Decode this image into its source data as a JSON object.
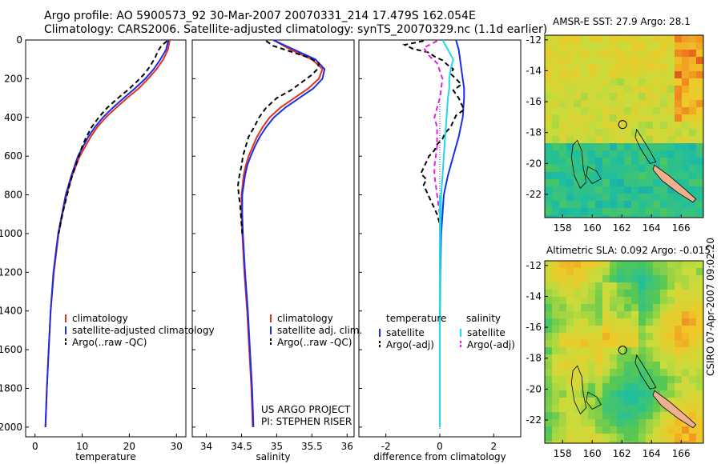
{
  "header": {
    "line1": "Argo profile: AO 5900573_92 30-Mar-2007 20070331_214 17.479S 162.054E",
    "line2": "Climatology: CARS2006. Satellite-adjusted climatology: synTS_20070329.nc (1.1d earlier)"
  },
  "credit": "CSIRO 07-Apr-2007 09:02:20",
  "colors": {
    "clim": "#e03020",
    "sat": "#1a2ee8",
    "argo": "#000000",
    "sat_s": "#22d8e8",
    "argo_s": "#e020d8"
  },
  "chart_data": [
    {
      "type": "line",
      "title": "",
      "xlabel": "temperature",
      "ylabel": "",
      "xlim": [
        -2,
        32
      ],
      "ylim": [
        2050,
        0
      ],
      "xticks": [
        "0",
        "10",
        "20",
        "30"
      ],
      "yticks": [
        "0",
        "200",
        "400",
        "600",
        "800",
        "1000",
        "1200",
        "1400",
        "1600",
        "1800",
        "2000"
      ],
      "legend": [
        "climatology",
        "satellite-adjusted climatology",
        "Argo(..raw -QC)"
      ],
      "series": [
        {
          "name": "climatology",
          "depth": [
            0,
            50,
            100,
            150,
            200,
            250,
            300,
            350,
            400,
            450,
            500,
            600,
            700,
            800,
            900,
            1000,
            1200,
            1400,
            1600,
            1800,
            2000
          ],
          "values": [
            28.6,
            28.2,
            27.2,
            25.8,
            24.0,
            22.0,
            19.5,
            17.2,
            15.0,
            13.2,
            11.8,
            9.5,
            7.9,
            6.7,
            5.8,
            5.0,
            4.0,
            3.3,
            2.9,
            2.5,
            2.2
          ]
        },
        {
          "name": "satellite-adjusted climatology",
          "depth": [
            0,
            50,
            100,
            150,
            200,
            250,
            300,
            350,
            400,
            450,
            500,
            600,
            700,
            800,
            900,
            1000,
            1200,
            1400,
            1600,
            1800,
            2000
          ],
          "values": [
            28.3,
            27.8,
            26.6,
            25.2,
            23.4,
            21.2,
            18.8,
            16.5,
            14.4,
            12.7,
            11.3,
            9.1,
            7.7,
            6.5,
            5.7,
            4.9,
            3.9,
            3.3,
            2.9,
            2.5,
            2.2
          ]
        },
        {
          "name": "Argo(..raw -QC)",
          "depth": [
            5,
            30,
            60,
            90,
            120,
            150,
            180,
            220,
            260,
            300,
            350,
            400,
            450,
            500,
            550,
            600,
            650,
            700,
            750,
            800,
            850,
            900,
            950,
            1000
          ],
          "values": [
            28.0,
            26.8,
            26.0,
            25.5,
            24.8,
            24.0,
            23.0,
            21.4,
            19.6,
            17.6,
            15.3,
            13.5,
            12.0,
            10.9,
            10.0,
            9.3,
            8.6,
            7.9,
            7.3,
            6.8,
            6.3,
            5.8,
            5.4,
            5.0
          ]
        }
      ]
    },
    {
      "type": "line",
      "title": "",
      "xlabel": "salinity",
      "ylabel": "",
      "xlim": [
        33.8,
        36.1
      ],
      "ylim": [
        2050,
        0
      ],
      "xticks": [
        "34",
        "34.5",
        "35",
        "35.5",
        "36"
      ],
      "legend": [
        "climatology",
        "satellite adj. clim.",
        "Argo(..raw -QC)"
      ],
      "annotation": [
        "US ARGO PROJECT",
        "PI: STEPHEN RISER"
      ],
      "series": [
        {
          "name": "climatology",
          "depth": [
            0,
            50,
            100,
            150,
            200,
            250,
            300,
            350,
            400,
            450,
            500,
            550,
            600,
            650,
            700,
            800,
            900,
            1000,
            1200,
            1400,
            1600,
            1800,
            2000
          ],
          "values": [
            34.95,
            35.2,
            35.5,
            35.65,
            35.6,
            35.45,
            35.25,
            35.05,
            34.9,
            34.8,
            34.72,
            34.66,
            34.6,
            34.56,
            34.53,
            34.5,
            34.5,
            34.51,
            34.54,
            34.58,
            34.61,
            34.64,
            34.66
          ]
        },
        {
          "name": "satellite adj. clim.",
          "depth": [
            0,
            50,
            100,
            150,
            200,
            250,
            300,
            350,
            400,
            450,
            500,
            550,
            600,
            650,
            700,
            800,
            900,
            1000,
            1200,
            1400,
            1600,
            1800,
            2000
          ],
          "values": [
            34.95,
            35.25,
            35.55,
            35.68,
            35.65,
            35.52,
            35.32,
            35.12,
            34.96,
            34.85,
            34.76,
            34.69,
            34.63,
            34.58,
            34.55,
            34.51,
            34.51,
            34.52,
            34.55,
            34.59,
            34.62,
            34.65,
            34.67
          ]
        },
        {
          "name": "Argo(..raw -QC)",
          "depth": [
            5,
            30,
            60,
            90,
            120,
            150,
            180,
            220,
            260,
            300,
            350,
            400,
            450,
            500,
            550,
            600,
            650,
            700,
            750,
            800,
            850,
            900,
            950,
            1000
          ],
          "values": [
            34.85,
            34.95,
            35.2,
            35.45,
            35.6,
            35.58,
            35.5,
            35.35,
            35.2,
            35.0,
            34.85,
            34.75,
            34.68,
            34.6,
            34.56,
            34.52,
            34.5,
            34.47,
            34.45,
            34.46,
            34.48,
            34.49,
            34.5,
            34.51
          ]
        }
      ]
    },
    {
      "type": "line",
      "title": "",
      "xlabel": "difference from climatology",
      "ylabel": "",
      "xlim": [
        -3,
        3
      ],
      "ylim": [
        2050,
        0
      ],
      "xticks": [
        "-2",
        "0",
        "2"
      ],
      "legend": [
        "temperature",
        "satellite",
        "Argo(-adj)",
        "salinity",
        "satellite",
        "Argo(-adj)"
      ],
      "series": [
        {
          "name": "temperature satellite",
          "depth": [
            0,
            50,
            100,
            150,
            200,
            250,
            300,
            400,
            500,
            600,
            700,
            800,
            1000,
            1200,
            1500,
            2000
          ],
          "values": [
            0.6,
            0.7,
            0.75,
            0.8,
            0.85,
            0.9,
            0.9,
            0.85,
            0.7,
            0.5,
            0.3,
            0.15,
            0.05,
            0.02,
            0.0,
            0.0
          ]
        },
        {
          "name": "temperature Argo(-adj)",
          "depth": [
            5,
            25,
            45,
            65,
            85,
            105,
            130,
            150,
            175,
            200,
            230,
            260,
            300,
            330,
            360,
            390,
            420,
            450,
            480,
            510,
            540,
            570,
            600,
            630,
            660,
            690,
            720,
            750,
            780,
            810,
            840,
            870,
            900,
            950,
            1000
          ],
          "values": [
            -0.6,
            -1.3,
            -1.0,
            -0.4,
            -0.2,
            0.1,
            0.3,
            0.5,
            0.4,
            0.6,
            0.8,
            0.5,
            0.7,
            0.8,
            0.9,
            0.6,
            0.5,
            0.4,
            0.2,
            0.1,
            -0.1,
            -0.2,
            -0.4,
            -0.5,
            -0.6,
            -0.7,
            -0.5,
            -0.6,
            -0.5,
            -0.4,
            -0.3,
            -0.2,
            -0.1,
            0.0,
            0.0
          ]
        },
        {
          "name": "salinity satellite",
          "depth": [
            0,
            50,
            100,
            150,
            200,
            250,
            300,
            400,
            500,
            600,
            700,
            800,
            1000,
            1500,
            2000
          ],
          "values": [
            0.1,
            0.3,
            0.5,
            0.4,
            0.35,
            0.35,
            0.3,
            0.25,
            0.2,
            0.15,
            0.1,
            0.05,
            0.02,
            0.0,
            0.0
          ]
        },
        {
          "name": "salinity Argo(-adj)",
          "depth": [
            5,
            40,
            80,
            120,
            160,
            200,
            250,
            300,
            350,
            400,
            450,
            500,
            550,
            600,
            650,
            700,
            750,
            800,
            850,
            900,
            1000
          ],
          "values": [
            -0.1,
            -0.6,
            -0.4,
            -0.1,
            0.0,
            0.1,
            0.05,
            0.0,
            -0.1,
            -0.2,
            -0.1,
            -0.1,
            -0.1,
            -0.15,
            -0.2,
            -0.2,
            -0.15,
            -0.1,
            -0.05,
            0.0,
            0.0
          ]
        }
      ]
    },
    {
      "type": "heatmap",
      "title": "AMSR-E SST: 27.9 Argo: 28.1",
      "xticks": [
        "158",
        "160",
        "162",
        "164",
        "166"
      ],
      "yticks": [
        "-12",
        "-14",
        "-16",
        "-18",
        "-20",
        "-22"
      ],
      "xlim": [
        156.8,
        167.5
      ],
      "ylim": [
        -23.5,
        -11.7
      ]
    },
    {
      "type": "heatmap",
      "title": "Altimetric SLA: 0.092 Argo: -0.015",
      "xticks": [
        "158",
        "160",
        "162",
        "164",
        "166"
      ],
      "yticks": [
        "-12",
        "-14",
        "-16",
        "-18",
        "-20",
        "-22"
      ],
      "xlim": [
        156.8,
        167.5
      ],
      "ylim": [
        -23.5,
        -11.7
      ]
    }
  ]
}
